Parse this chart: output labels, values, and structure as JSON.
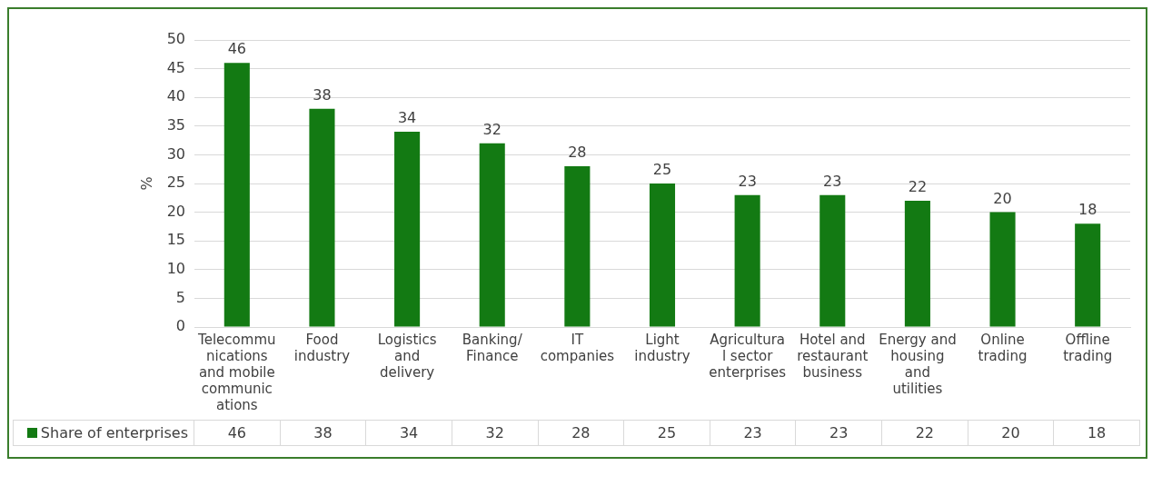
{
  "chart_data": {
    "type": "bar",
    "ylabel": "%",
    "categories": [
      "Telecommunications and mobile communications",
      "Food industry",
      "Logistics and delivery",
      "Banking/ Finance",
      "IT companies",
      "Light industry",
      "Agricultural sector enterprises",
      "Hotel and restaurant business",
      "Energy and housing and utilities",
      "Online trading",
      "Offline trading"
    ],
    "series": [
      {
        "name": "Share of enterprises",
        "color": "#137a13",
        "values": [
          46,
          38,
          34,
          32,
          28,
          25,
          23,
          23,
          22,
          20,
          18
        ]
      }
    ],
    "annotations": [
      "46",
      "38",
      "34",
      "32",
      "28",
      "25",
      "23",
      "23",
      "22",
      "20",
      "18"
    ],
    "ylim": [
      0,
      50
    ],
    "yticks": [
      0,
      5,
      10,
      15,
      20,
      25,
      30,
      35,
      40,
      45,
      50
    ],
    "grid": "y",
    "data_labels": true,
    "legend": "bottom"
  }
}
